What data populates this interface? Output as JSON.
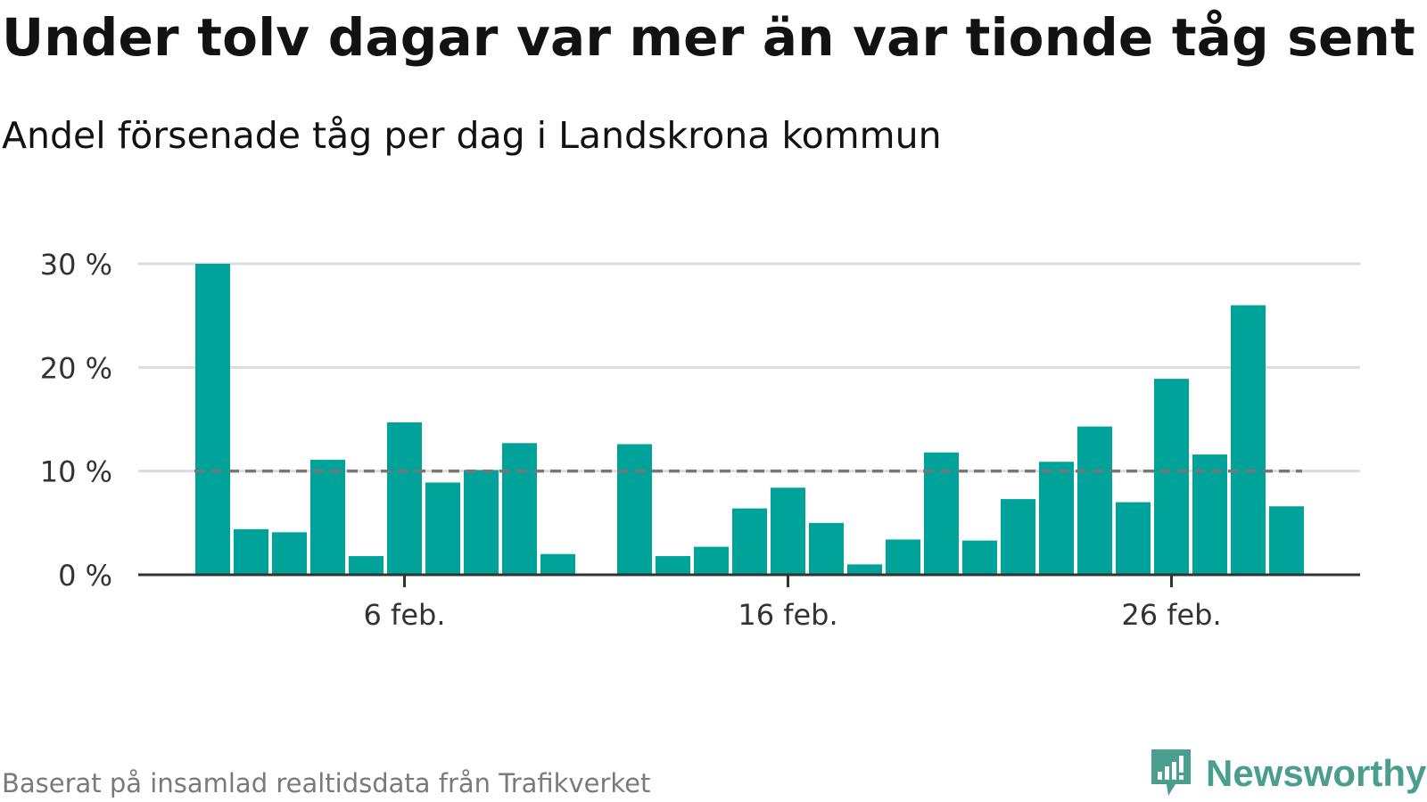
{
  "title": "Under tolv dagar var mer än var tionde tåg sent",
  "subtitle": "Andel försenade tåg per dag i Landskrona kommun",
  "footer": "Baserat på insamlad realtidsdata från Trafikverket",
  "brand": "Newsworthy",
  "colors": {
    "bar": "#00a39a",
    "grid": "#dcdcdc",
    "axis": "#333333",
    "reference_line": "#777777",
    "brand": "#4a9e8e"
  },
  "chart_data": {
    "type": "bar",
    "x": [
      "2/1",
      "2/2",
      "2/3",
      "2/4",
      "2/5",
      "2/6",
      "2/7",
      "2/8",
      "2/9",
      "2/10",
      "2/11",
      "2/12",
      "2/13",
      "2/14",
      "2/15",
      "2/16",
      "2/17",
      "2/18",
      "2/19",
      "2/20",
      "2/21",
      "2/22",
      "2/23",
      "2/24",
      "2/25",
      "2/26",
      "2/27",
      "2/28",
      "2/29",
      "3/1"
    ],
    "values": [
      30.0,
      4.4,
      4.1,
      11.1,
      1.8,
      14.7,
      8.9,
      10.1,
      12.7,
      2.0,
      null,
      12.6,
      1.8,
      2.7,
      6.4,
      8.4,
      5.0,
      1.0,
      3.4,
      11.8,
      3.3,
      7.3,
      10.9,
      14.3,
      7.0,
      18.9,
      11.6,
      26.0,
      6.6,
      null
    ],
    "xticks": [
      {
        "index": 5,
        "label": "6 feb."
      },
      {
        "index": 15,
        "label": "16 feb."
      },
      {
        "index": 25,
        "label": "26 feb."
      }
    ],
    "yticks": [
      {
        "value": 0,
        "label": "0 %"
      },
      {
        "value": 10,
        "label": "10 %"
      },
      {
        "value": 20,
        "label": "20 %"
      },
      {
        "value": 30,
        "label": "30 %"
      }
    ],
    "ylim": [
      0,
      30
    ],
    "reference_line": 10,
    "grid": true,
    "xlabel": "",
    "ylabel": ""
  }
}
